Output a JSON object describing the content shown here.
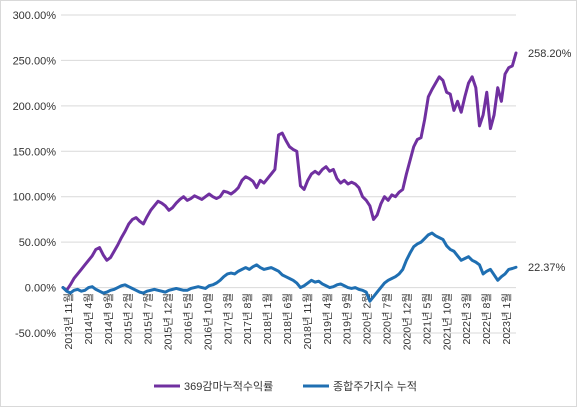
{
  "chart_data": {
    "type": "line",
    "y_axis": {
      "min": -50,
      "max": 300,
      "step": 50,
      "tick_labels": [
        "-50.00%",
        "0.00%",
        "50.00%",
        "100.00%",
        "150.00%",
        "200.00%",
        "250.00%",
        "300.00%"
      ]
    },
    "grid": "horizontal",
    "x_tick_labels": [
      "2013년 11월",
      "2014년 4월",
      "2014년 9월",
      "2015년 2월",
      "2015년 7월",
      "2015년 12월",
      "2016년 5월",
      "2016년 10월",
      "2017년 3월",
      "2017년 8월",
      "2018년 1월",
      "2018년 6월",
      "2018년 11월",
      "2019년 4월",
      "2019년 9월",
      "2020년 2월",
      "2020년 7월",
      "2020년 12월",
      "2021년 5월",
      "2021년 10월",
      "2022년 3월",
      "2022년 8월",
      "2023년 1월"
    ],
    "legend_position": "bottom",
    "series": [
      {
        "name": "369감마누적수익률",
        "color": "#7030a0",
        "end_label": "258.20%",
        "values": [
          0,
          -3,
          3,
          10,
          15,
          20,
          25,
          30,
          35,
          42,
          44,
          36,
          30,
          33,
          40,
          47,
          55,
          62,
          70,
          75,
          77,
          73,
          70,
          78,
          85,
          90,
          95,
          93,
          90,
          85,
          88,
          93,
          97,
          100,
          96,
          98,
          101,
          99,
          97,
          100,
          103,
          100,
          98,
          100,
          106,
          105,
          103,
          106,
          110,
          118,
          122,
          120,
          117,
          110,
          118,
          115,
          120,
          125,
          130,
          168,
          170,
          162,
          155,
          152,
          150,
          112,
          108,
          118,
          125,
          128,
          125,
          130,
          133,
          128,
          130,
          120,
          115,
          118,
          114,
          116,
          114,
          110,
          100,
          96,
          90,
          75,
          80,
          92,
          100,
          96,
          102,
          100,
          105,
          108,
          125,
          140,
          155,
          163,
          165,
          185,
          210,
          218,
          225,
          232,
          228,
          215,
          213,
          195,
          205,
          193,
          210,
          225,
          232,
          220,
          178,
          190,
          215,
          175,
          190,
          220,
          205,
          235,
          242,
          244,
          258.2
        ]
      },
      {
        "name": "종합주가지수 누적",
        "color": "#1f6fb2",
        "end_label": "22.37%",
        "values": [
          0,
          -4,
          -6,
          -3,
          -2,
          -4,
          -3,
          0,
          1,
          -2,
          -4,
          -6,
          -5,
          -3,
          -2,
          0,
          2,
          3,
          1,
          -1,
          -3,
          -5,
          -6,
          -4,
          -3,
          -2,
          -3,
          -4,
          -5,
          -3,
          -2,
          -1,
          -2,
          -3,
          -3,
          -1,
          0,
          1,
          0,
          -1,
          2,
          3,
          5,
          8,
          12,
          15,
          16,
          15,
          18,
          20,
          22,
          20,
          23,
          25,
          22,
          20,
          21,
          22,
          20,
          18,
          14,
          12,
          10,
          8,
          5,
          0,
          2,
          5,
          8,
          6,
          7,
          4,
          2,
          0,
          1,
          3,
          4,
          2,
          0,
          -1,
          0,
          -2,
          -3,
          -5,
          -15,
          -10,
          -5,
          0,
          5,
          8,
          10,
          12,
          15,
          20,
          30,
          38,
          45,
          48,
          50,
          54,
          58,
          60,
          57,
          55,
          53,
          46,
          42,
          40,
          35,
          30,
          32,
          34,
          30,
          28,
          25,
          15,
          18,
          20,
          14,
          8,
          12,
          15,
          20,
          21,
          22.37
        ]
      }
    ]
  }
}
